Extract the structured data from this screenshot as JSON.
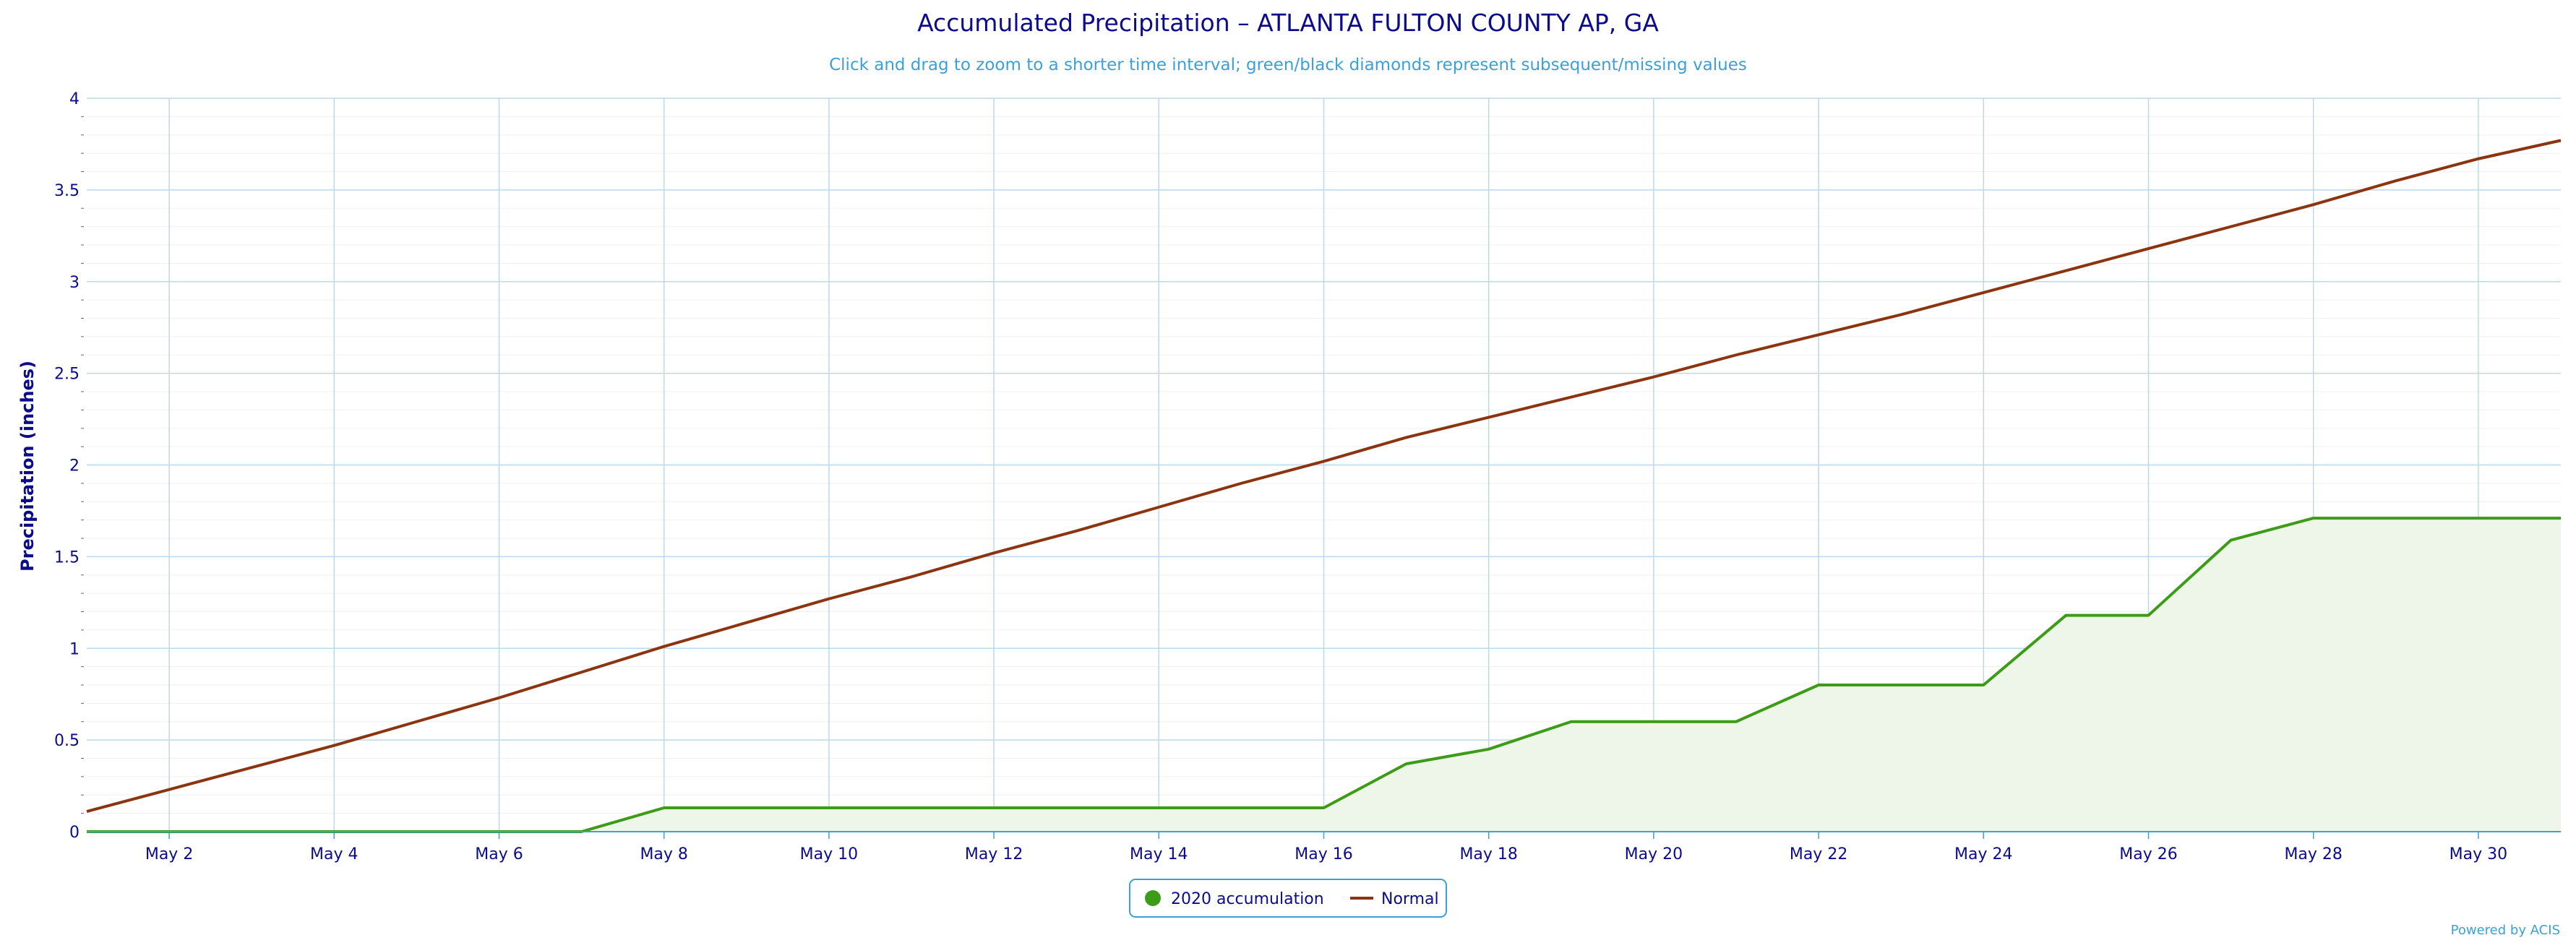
{
  "chart_data": {
    "type": "area",
    "title": "Accumulated Precipitation – ATLANTA FULTON COUNTY AP, GA",
    "subtitle": "Click and drag to zoom to a shorter time interval; green/black diamonds represent subsequent/missing values",
    "ylabel": "Precipitation (inches)",
    "xlabel": "",
    "ylim": [
      0,
      4
    ],
    "yticks": [
      "0",
      "0.5",
      "1",
      "1.5",
      "2",
      "2.5",
      "3",
      "3.5",
      "4"
    ],
    "xlim": [
      "2020-05-01",
      "2020-05-31"
    ],
    "xtick_labels": [
      "May 2",
      "May 4",
      "May 6",
      "May 8",
      "May 10",
      "May 12",
      "May 14",
      "May 16",
      "May 18",
      "May 20",
      "May 22",
      "May 24",
      "May 26",
      "May 28",
      "May 30"
    ],
    "grid": true,
    "legend_position": "bottom-center",
    "x": [
      "2020-05-01",
      "2020-05-02",
      "2020-05-03",
      "2020-05-04",
      "2020-05-05",
      "2020-05-06",
      "2020-05-07",
      "2020-05-08",
      "2020-05-09",
      "2020-05-10",
      "2020-05-11",
      "2020-05-12",
      "2020-05-13",
      "2020-05-14",
      "2020-05-15",
      "2020-05-16",
      "2020-05-17",
      "2020-05-18",
      "2020-05-19",
      "2020-05-20",
      "2020-05-21",
      "2020-05-22",
      "2020-05-23",
      "2020-05-24",
      "2020-05-25",
      "2020-05-26",
      "2020-05-27",
      "2020-05-28",
      "2020-05-29",
      "2020-05-30",
      "2020-05-31"
    ],
    "series": [
      {
        "name": "2020 accumulation",
        "color": "#3d9c17",
        "fill": "#edf6e8",
        "values": [
          0,
          0,
          0,
          0,
          0,
          0,
          0,
          0.13,
          0.13,
          0.13,
          0.13,
          0.13,
          0.13,
          0.13,
          0.13,
          0.13,
          0.37,
          0.45,
          0.6,
          0.6,
          0.6,
          0.8,
          0.8,
          0.8,
          1.18,
          1.18,
          1.59,
          1.71,
          1.71,
          1.71,
          1.71
        ]
      },
      {
        "name": "Normal",
        "color": "#8b3510",
        "values": [
          0.11,
          0.23,
          0.35,
          0.47,
          0.6,
          0.73,
          0.87,
          1.01,
          1.14,
          1.27,
          1.39,
          1.52,
          1.64,
          1.77,
          1.9,
          2.02,
          2.15,
          2.26,
          2.37,
          2.48,
          2.6,
          2.71,
          2.82,
          2.94,
          3.06,
          3.18,
          3.3,
          3.42,
          3.55,
          3.67,
          3.77
        ]
      }
    ]
  },
  "footer": {
    "credit": "Powered by ACIS"
  },
  "colors": {
    "title": "#0b0b8c",
    "subtitle": "#3aa0d8",
    "grid": "#bcd8ec",
    "axis": "#3aa0d8",
    "tick_text": "#0b0b8c"
  }
}
